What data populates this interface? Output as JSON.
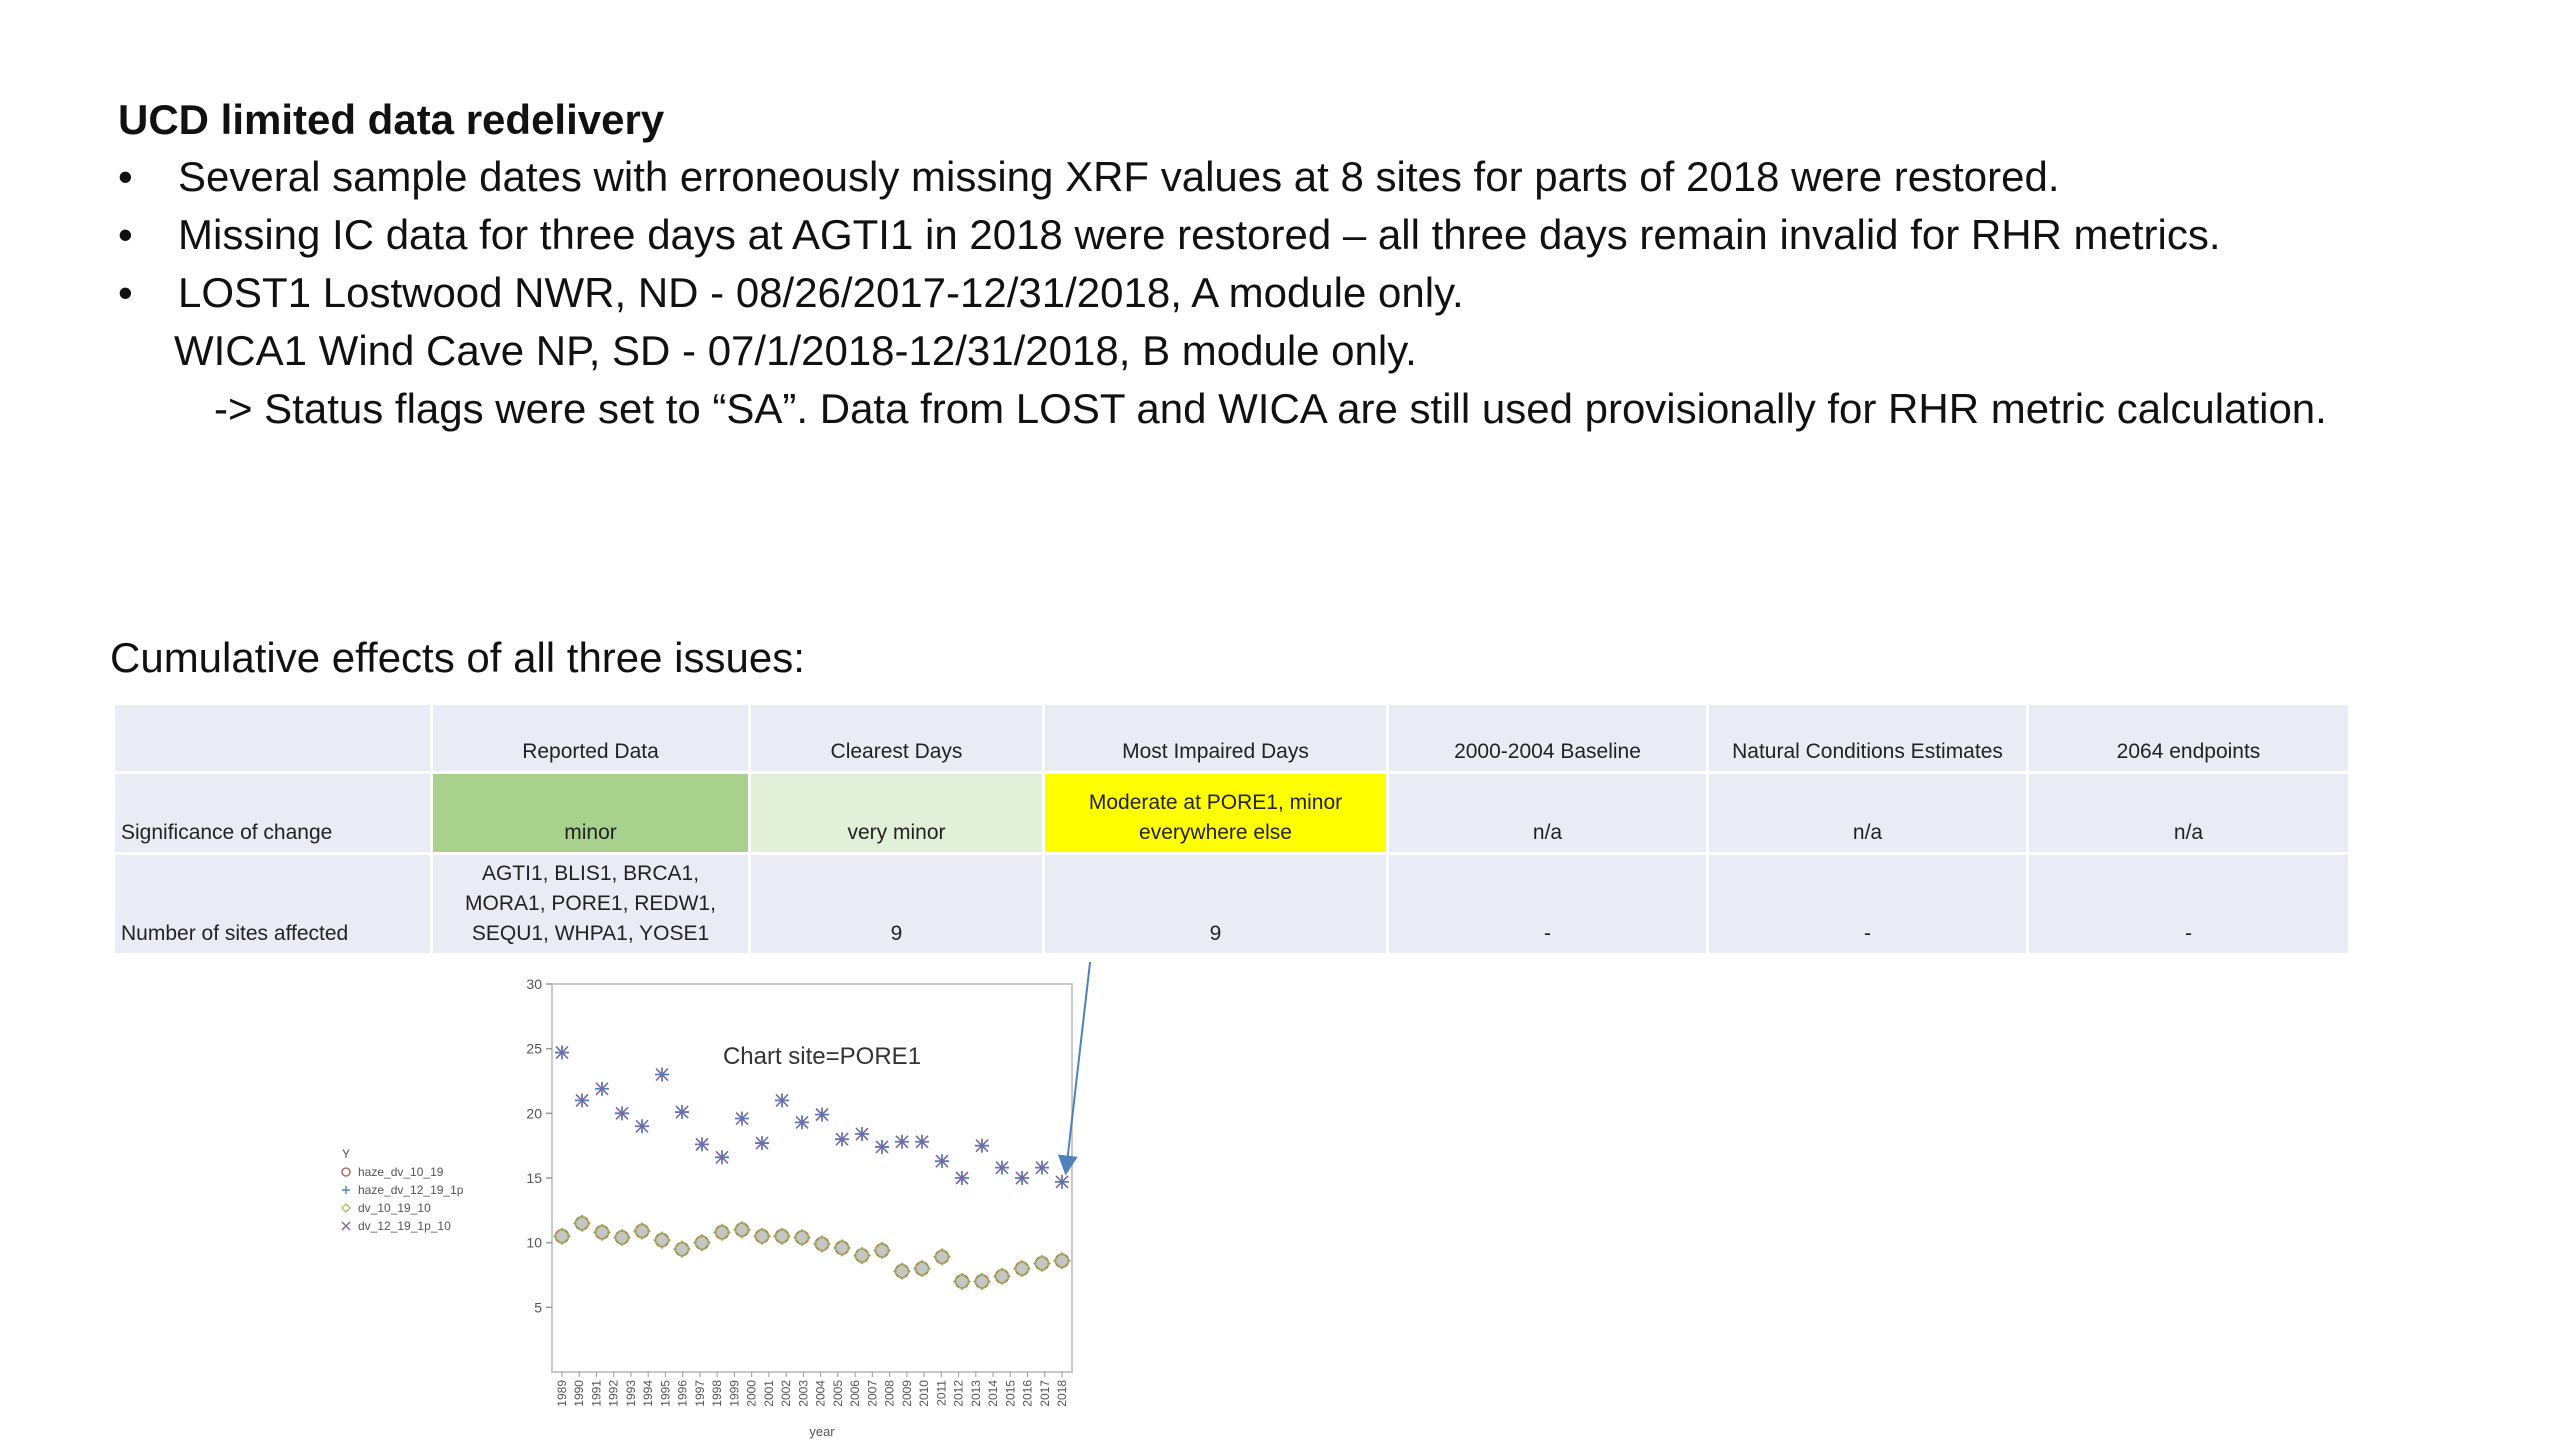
{
  "heading": "UCD limited data redelivery",
  "bullets": [
    {
      "mark": "•",
      "text": "Several sample dates with erroneously missing XRF values at 8 sites for parts of 2018 were restored."
    },
    {
      "mark": "•",
      "text": "Missing IC data for three days at AGTI1 in 2018 were restored – all three days remain invalid for RHR metrics."
    },
    {
      "mark": "•",
      "text": "LOST1  Lostwood NWR, ND -  08/26/2017-12/31/2018, A module only."
    }
  ],
  "wica_line": "WICA1 Wind Cave NP, SD -  07/1/2018-12/31/2018, B module only.",
  "status_line": "-> Status flags were set to “SA”. Data from LOST and WICA are still used provisionally for RHR metric calculation.",
  "section_title": "Cumulative effects of all three issues:",
  "table": {
    "headers": [
      "",
      "Reported Data",
      "Clearest Days",
      "Most Impaired Days",
      "2000-2004 Baseline",
      "Natural Conditions Estimates",
      "2064 endpoints"
    ],
    "rows": [
      {
        "label": "Significance of change",
        "cells": [
          "minor",
          "very minor",
          "Moderate at PORE1, minor everywhere else",
          "n/a",
          "n/a",
          "n/a"
        ]
      },
      {
        "label": "Number of sites affected",
        "cells": [
          "AGTI1, BLIS1, BRCA1, MORA1, PORE1, REDW1, SEQU1, WHPA1, YOSE1",
          "9",
          "9",
          "-",
          "-",
          "-"
        ]
      }
    ],
    "colors": {
      "minor": "#a9d18e",
      "very_minor": "#e2efd9",
      "moderate": "#ffff00",
      "cell": "#e9ecf5"
    }
  },
  "chart_data": {
    "type": "scatter",
    "title": "Chart site=PORE1",
    "xlabel": "year",
    "ylabel": "Y",
    "ylim": [
      0,
      30
    ],
    "yticks": [
      5,
      10,
      15,
      20,
      25,
      30
    ],
    "grid": false,
    "legend_placement": "left",
    "x": [
      1989,
      1990,
      1991,
      1992,
      1993,
      1994,
      1995,
      1996,
      1997,
      1998,
      1999,
      2000,
      2001,
      2002,
      2003,
      2004,
      2005,
      2006,
      2007,
      2008,
      2009,
      2010,
      2011,
      2012,
      2013,
      2014,
      2015,
      2016,
      2017,
      2018
    ],
    "series": [
      {
        "name": "haze_dv_10_19",
        "marker": "circle",
        "color": "#c0504d",
        "values": [
          10.5,
          11.5,
          10.8,
          10.4,
          10.9,
          10.2,
          9.5,
          10.0,
          10.8,
          11.0,
          10.5,
          10.5,
          10.4,
          9.9,
          9.6,
          9.0,
          9.4,
          7.8,
          8.0,
          8.9,
          7.0,
          7.0,
          7.4,
          8.0,
          8.4,
          8.6,
          null,
          null,
          null,
          null
        ]
      },
      {
        "name": "haze_dv_12_19_1p",
        "marker": "plus",
        "color": "#4f81bd",
        "values": [
          24.7,
          21.0,
          21.9,
          20.0,
          19.0,
          23.0,
          20.1,
          17.6,
          16.6,
          19.6,
          17.7,
          21.0,
          19.3,
          19.9,
          18.0,
          18.4,
          17.4,
          17.8,
          17.8,
          16.3,
          15.0,
          17.5,
          15.8,
          15.0,
          15.8,
          14.7,
          null,
          null,
          null,
          null
        ]
      },
      {
        "name": "dv_10_19_10",
        "marker": "diamond",
        "color": "#9bbb59",
        "values": [
          10.5,
          11.5,
          10.8,
          10.4,
          10.9,
          10.2,
          9.5,
          10.0,
          10.8,
          11.0,
          10.5,
          10.5,
          10.4,
          9.9,
          9.6,
          9.0,
          9.4,
          7.8,
          8.0,
          8.9,
          7.0,
          7.0,
          7.4,
          8.0,
          8.4,
          8.6,
          null,
          null,
          null,
          null
        ]
      },
      {
        "name": "dv_12_19_1p_10",
        "marker": "x",
        "color": "#8064a2",
        "values": [
          24.7,
          21.0,
          21.9,
          20.0,
          19.0,
          23.0,
          20.1,
          17.6,
          16.6,
          19.6,
          17.7,
          21.0,
          19.3,
          19.9,
          18.0,
          18.4,
          17.4,
          17.8,
          17.8,
          16.3,
          15.0,
          17.5,
          15.8,
          15.0,
          15.8,
          14.7,
          null,
          null,
          null,
          null
        ]
      }
    ]
  }
}
